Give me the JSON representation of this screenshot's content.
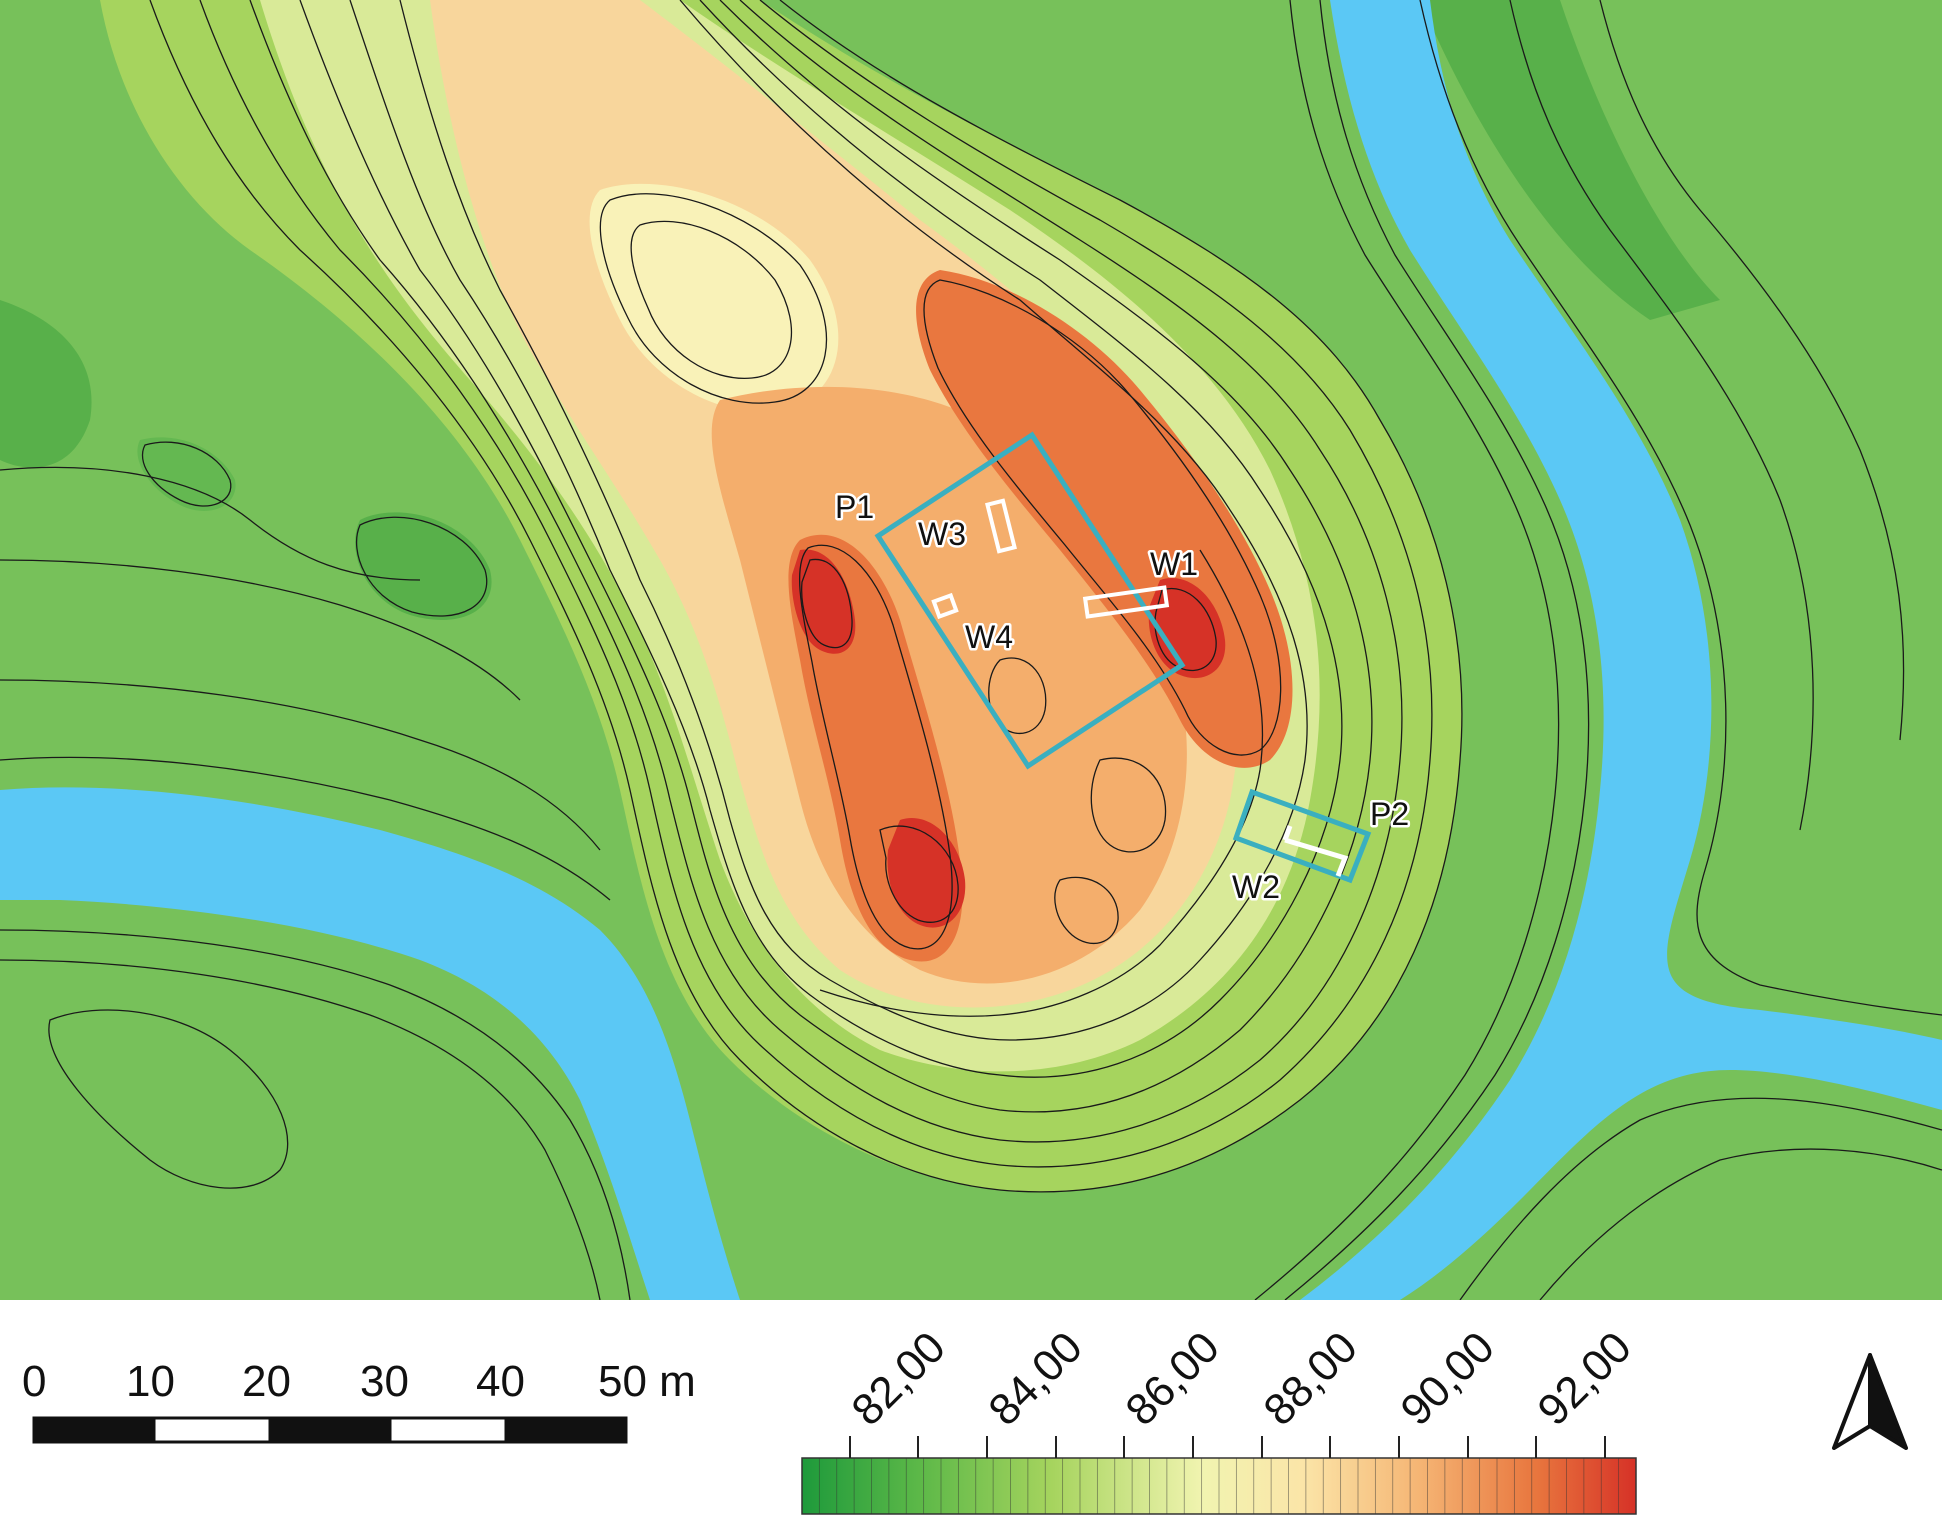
{
  "map": {
    "river_color": "#5BC8F5",
    "lowland_color": "#77C15A",
    "peak_color": "#D8352A",
    "annotation_outline_color": "#3AAFC0",
    "labels": {
      "p1": "P1",
      "p2": "P2",
      "w1": "W1",
      "w2": "W2",
      "w3": "W3",
      "w4": "W4"
    }
  },
  "scale_bar": {
    "ticks": [
      "0",
      "10",
      "20",
      "30",
      "40"
    ],
    "end_label": "50 m"
  },
  "elevation_legend": {
    "labels": [
      "82,00",
      "84,00",
      "86,00",
      "88,00",
      "90,00",
      "92,00"
    ],
    "colors": [
      "#1E9A3B",
      "#5CB848",
      "#A6D45E",
      "#E6F0A2",
      "#FBE5A8",
      "#F5B574",
      "#E8763E",
      "#D63227"
    ]
  },
  "north_arrow": {
    "icon": "north-arrow-icon"
  }
}
